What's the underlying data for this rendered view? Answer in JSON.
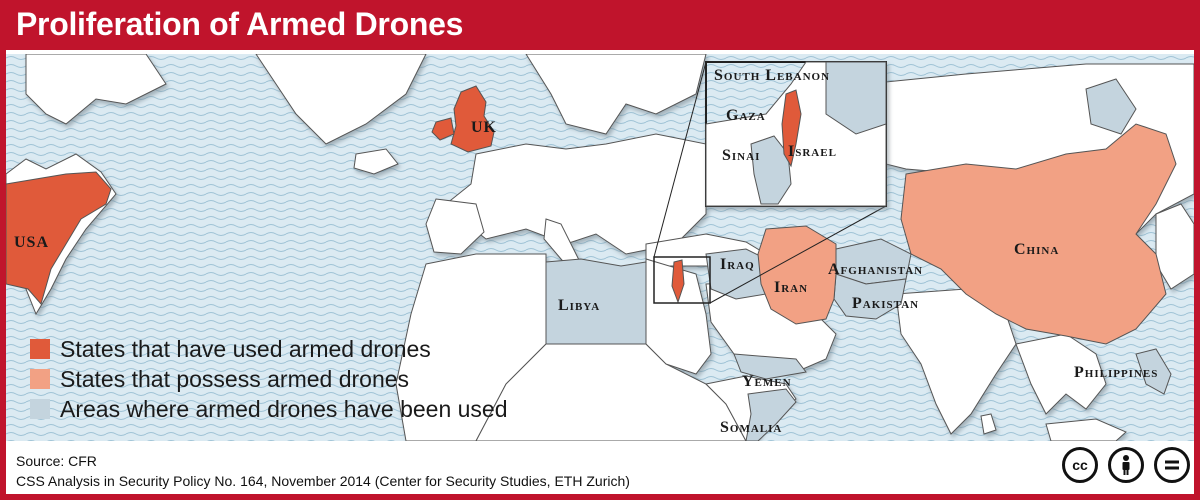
{
  "title": "Proliferation of Armed Drones",
  "colors": {
    "brand": "#c0142c",
    "used_armed_drones": "#e05a3a",
    "possess_armed_drones": "#f2a184",
    "areas_drones_used": "#c4d4de",
    "sea": "#d9e9f1",
    "land": "#ffffff"
  },
  "map_labels": {
    "usa": "USA",
    "uk": "UK",
    "china": "China",
    "iran": "Iran",
    "iraq": "Iraq",
    "libya": "Libya",
    "afghanistan": "Afghanistan",
    "pakistan": "Pakistan",
    "yemen": "Yemen",
    "somalia": "Somalia",
    "philippines": "Philippines"
  },
  "inset": {
    "south_lebanon": "South Lebanon",
    "gaza": "Gaza",
    "sinai": "Sinai",
    "israel": "Israel"
  },
  "legend": [
    {
      "label": "States that have used armed drones",
      "color": "#e05a3a"
    },
    {
      "label": "States that possess armed drones",
      "color": "#f2a184"
    },
    {
      "label": "Areas where armed drones have been used",
      "color": "#c4d4de"
    }
  ],
  "footer": {
    "source": "Source: CFR",
    "citation": "CSS Analysis in Security Policy No. 164, November 2014 (Center for Security Studies, ETH Zurich)"
  },
  "license_icons": [
    "cc-icon",
    "attribution-icon",
    "no-derivatives-icon"
  ]
}
